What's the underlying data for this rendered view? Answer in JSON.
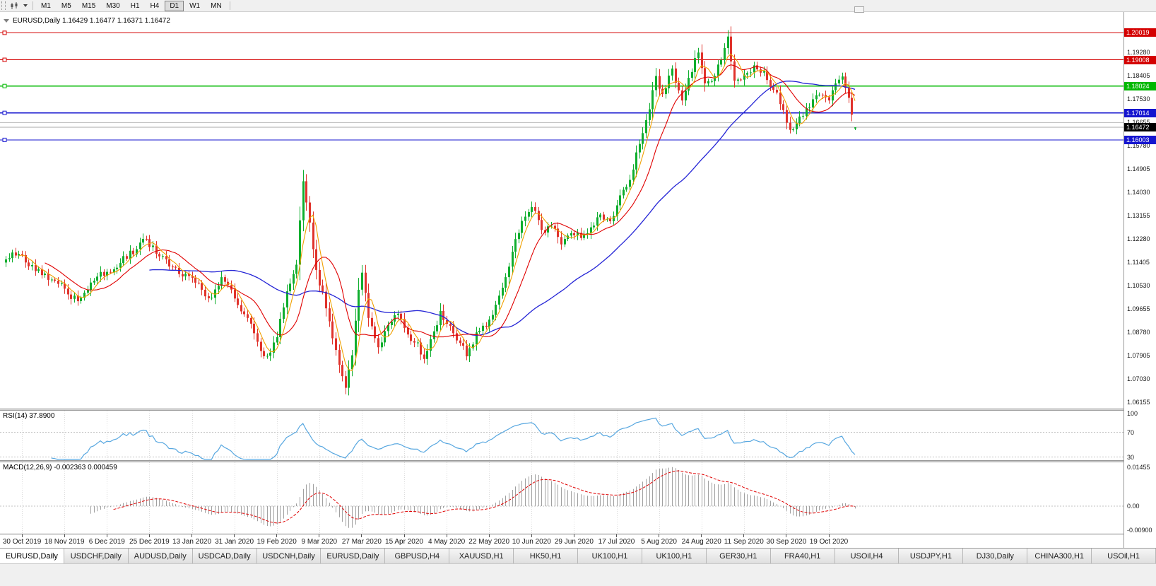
{
  "toolbar": {
    "timeframes": [
      {
        "label": "M1",
        "active": false
      },
      {
        "label": "M5",
        "active": false
      },
      {
        "label": "M15",
        "active": false
      },
      {
        "label": "M30",
        "active": false
      },
      {
        "label": "H1",
        "active": false
      },
      {
        "label": "H4",
        "active": false
      },
      {
        "label": "D1",
        "active": true
      },
      {
        "label": "W1",
        "active": false
      },
      {
        "label": "MN",
        "active": false
      }
    ]
  },
  "chart": {
    "symbol": "EURUSD",
    "timeframe": "Daily",
    "header_text": "EURUSD,Daily 1.16429 1.16477 1.16371 1.16472",
    "ohlc": {
      "open": "1.16429",
      "high": "1.16477",
      "low": "1.16371",
      "close": "1.16472"
    },
    "price_axis_ticks": [
      "1.19280",
      "1.18405",
      "1.17530",
      "1.16655",
      "1.15780",
      "1.14905",
      "1.14030",
      "1.13155",
      "1.12280",
      "1.11405",
      "1.10530",
      "1.09655",
      "1.08780",
      "1.07905",
      "1.07030",
      "1.06155"
    ],
    "levels": [
      {
        "price": 1.20019,
        "label": "1.20019",
        "color": "#d40000"
      },
      {
        "price": 1.19008,
        "label": "1.19008",
        "color": "#d40000"
      },
      {
        "price": 1.18024,
        "label": "1.18024",
        "color": "#00b800"
      },
      {
        "price": 1.17014,
        "label": "1.17014",
        "color": "#1515cf"
      },
      {
        "price": 1.16003,
        "label": "1.16003",
        "color": "#1515cf"
      }
    ],
    "gray_level": {
      "price": 1.16655,
      "color": "#c0c0c0"
    },
    "current_price": {
      "value": 1.16472,
      "label": "1.16472",
      "badge_bg": "#000000",
      "line_color": "#a8a8a8"
    },
    "colors": {
      "up_candle": "#0fae2e",
      "down_candle": "#e0332c",
      "ma_fast": "#f0a000",
      "ma_mid": "#e00000",
      "ma_slow": "#2525d6",
      "background": "#ffffff"
    }
  },
  "indicators": {
    "rsi": {
      "label": "RSI(14) 37.8900",
      "period": 14,
      "value": "37.8900",
      "axis_labels": [
        "100",
        "70",
        "30"
      ],
      "axis_values": [
        100,
        70,
        30
      ],
      "line_color": "#57a7e0",
      "level_lines": [
        70,
        30
      ]
    },
    "macd": {
      "label": "MACD(12,26,9) -0.002363 0.000459",
      "params": [
        12,
        26,
        9
      ],
      "values": [
        "-0.002363",
        "0.000459"
      ],
      "axis_labels": [
        "0.01455",
        "0.00",
        "-0.00900"
      ],
      "axis_values": [
        0.01455,
        0,
        -0.009
      ],
      "hist_color": "#a0a0a0",
      "signal_color": "#e00000"
    }
  },
  "time_axis": {
    "labels": [
      "30 Oct 2019",
      "18 Nov 2019",
      "6 Dec 2019",
      "25 Dec 2019",
      "13 Jan 2020",
      "31 Jan 2020",
      "19 Feb 2020",
      "9 Mar 2020",
      "27 Mar 2020",
      "15 Apr 2020",
      "4 May 2020",
      "22 May 2020",
      "10 Jun 2020",
      "29 Jun 2020",
      "17 Jul 2020",
      "5 Aug 2020",
      "24 Aug 2020",
      "11 Sep 2020",
      "30 Sep 2020",
      "19 Oct 2020"
    ]
  },
  "tabs": [
    {
      "label": "EURUSD,Daily",
      "active": true
    },
    {
      "label": "USDCHF,Daily",
      "active": false
    },
    {
      "label": "AUDUSD,Daily",
      "active": false
    },
    {
      "label": "USDCAD,Daily",
      "active": false
    },
    {
      "label": "USDCNH,Daily",
      "active": false
    },
    {
      "label": "EURUSD,Daily",
      "active": false
    },
    {
      "label": "GBPUSD,H4",
      "active": false
    },
    {
      "label": "XAUUSD,H1",
      "active": false
    },
    {
      "label": "HK50,H1",
      "active": false
    },
    {
      "label": "UK100,H1",
      "active": false
    },
    {
      "label": "UK100,H1",
      "active": false
    },
    {
      "label": "GER30,H1",
      "active": false
    },
    {
      "label": "FRA40,H1",
      "active": false
    },
    {
      "label": "USOil,H4",
      "active": false
    },
    {
      "label": "USDJPY,H1",
      "active": false
    },
    {
      "label": "DJ30,Daily",
      "active": false
    },
    {
      "label": "CHINA300,H1",
      "active": false
    },
    {
      "label": "USOil,H1",
      "active": false
    }
  ],
  "chart_data": {
    "type": "candlestick",
    "symbol": "EURUSD",
    "timeframe": "D1",
    "bars": 261,
    "visible_price_range": {
      "min": 1.0592,
      "max": 1.208
    },
    "final_ohlc": [
      1.16429,
      1.16477,
      1.16371,
      1.16472
    ],
    "moving_average_periods": {
      "fast": 5,
      "mid": 13,
      "slow": 45
    },
    "close_anchors": [
      [
        0,
        1.1152
      ],
      [
        4,
        1.1172
      ],
      [
        9,
        1.1108
      ],
      [
        13,
        1.1075
      ],
      [
        18,
        1.1042
      ],
      [
        22,
        1.0995
      ],
      [
        26,
        1.1065
      ],
      [
        31,
        1.1105
      ],
      [
        35,
        1.1138
      ],
      [
        40,
        1.119
      ],
      [
        43,
        1.1228
      ],
      [
        46,
        1.1172
      ],
      [
        50,
        1.1125
      ],
      [
        55,
        1.1098
      ],
      [
        60,
        1.1038
      ],
      [
        63,
        1.1008
      ],
      [
        66,
        1.1085
      ],
      [
        70,
        1.1005
      ],
      [
        74,
        1.0932
      ],
      [
        78,
        1.0808
      ],
      [
        80,
        1.079
      ],
      [
        83,
        1.086
      ],
      [
        86,
        1.1032
      ],
      [
        89,
        1.1132
      ],
      [
        91,
        1.1445
      ],
      [
        93,
        1.129
      ],
      [
        95,
        1.1112
      ],
      [
        98,
        1.0968
      ],
      [
        101,
        1.0812
      ],
      [
        104,
        1.067
      ],
      [
        106,
        1.0792
      ],
      [
        108,
        1.1038
      ],
      [
        109,
        1.1102
      ],
      [
        111,
        1.0932
      ],
      [
        114,
        1.0822
      ],
      [
        117,
        1.0905
      ],
      [
        120,
        1.0948
      ],
      [
        123,
        1.087
      ],
      [
        126,
        1.084
      ],
      [
        128,
        1.0778
      ],
      [
        131,
        1.0882
      ],
      [
        133,
        1.0958
      ],
      [
        136,
        1.0902
      ],
      [
        139,
        1.0838
      ],
      [
        141,
        1.0788
      ],
      [
        144,
        1.0878
      ],
      [
        147,
        1.0898
      ],
      [
        150,
        1.0982
      ],
      [
        153,
        1.1085
      ],
      [
        156,
        1.1228
      ],
      [
        159,
        1.1312
      ],
      [
        161,
        1.1348
      ],
      [
        164,
        1.1262
      ],
      [
        167,
        1.1278
      ],
      [
        170,
        1.1208
      ],
      [
        173,
        1.125
      ],
      [
        176,
        1.1232
      ],
      [
        179,
        1.1272
      ],
      [
        182,
        1.132
      ],
      [
        185,
        1.1295
      ],
      [
        188,
        1.1392
      ],
      [
        191,
        1.145
      ],
      [
        194,
        1.1585
      ],
      [
        197,
        1.1715
      ],
      [
        199,
        1.184
      ],
      [
        201,
        1.1772
      ],
      [
        204,
        1.1868
      ],
      [
        207,
        1.1748
      ],
      [
        210,
        1.1855
      ],
      [
        212,
        1.1928
      ],
      [
        214,
        1.1812
      ],
      [
        217,
        1.184
      ],
      [
        219,
        1.19
      ],
      [
        221,
        1.1988
      ],
      [
        223,
        1.1822
      ],
      [
        226,
        1.1845
      ],
      [
        229,
        1.188
      ],
      [
        232,
        1.1858
      ],
      [
        235,
        1.1788
      ],
      [
        238,
        1.1712
      ],
      [
        240,
        1.1638
      ],
      [
        243,
        1.1688
      ],
      [
        246,
        1.1722
      ],
      [
        249,
        1.177
      ],
      [
        252,
        1.1748
      ],
      [
        254,
        1.1812
      ],
      [
        256,
        1.1838
      ],
      [
        258,
        1.1758
      ],
      [
        259,
        1.1695
      ],
      [
        260,
        1.16472
      ]
    ]
  }
}
